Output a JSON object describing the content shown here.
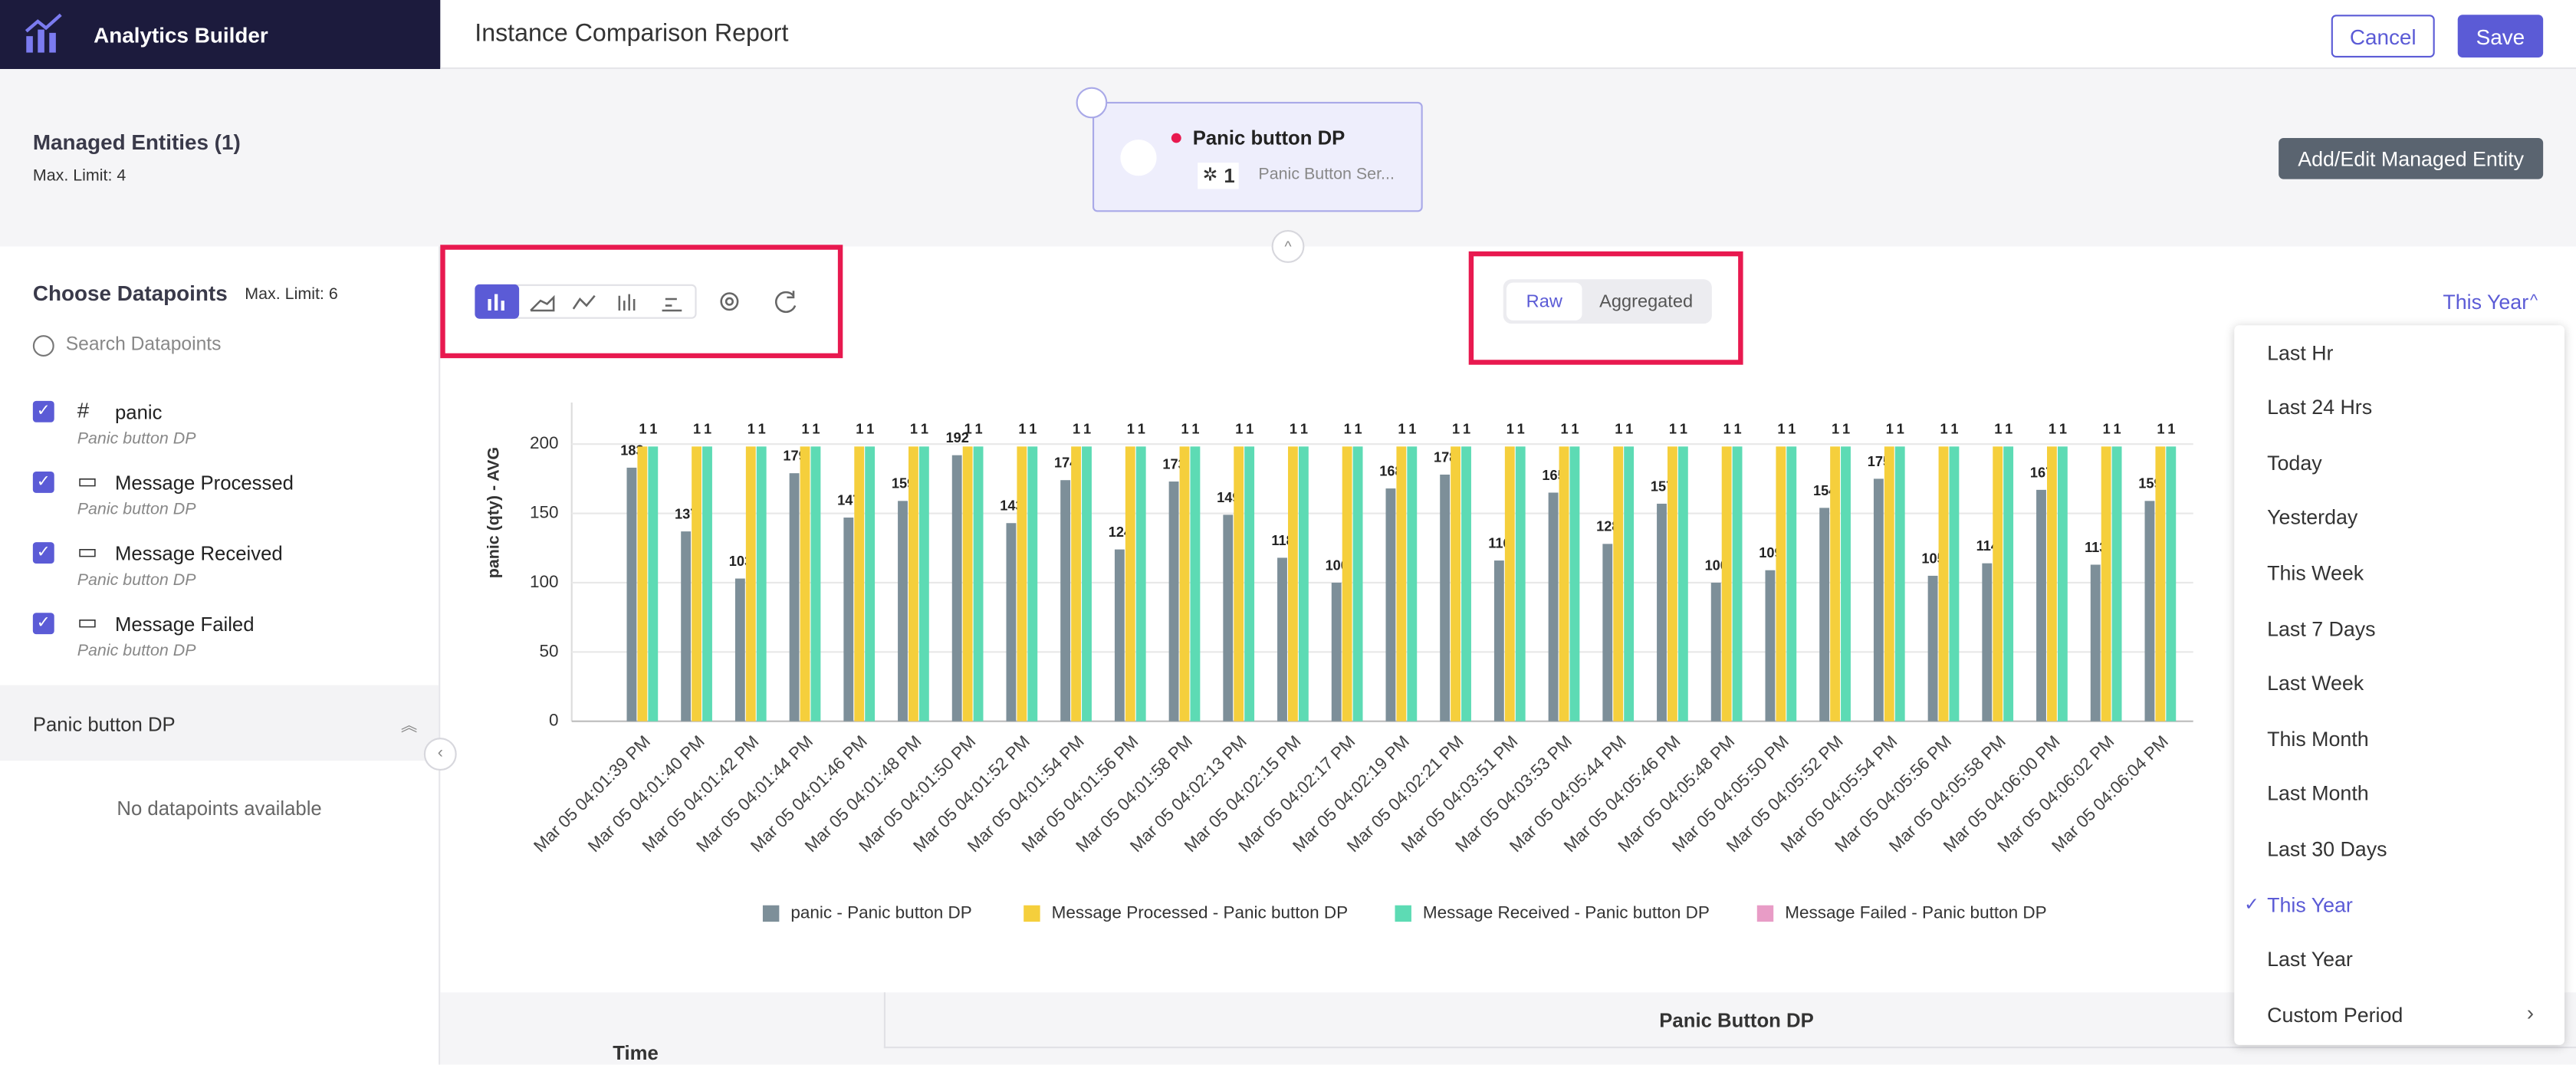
{
  "header": {
    "app": "Analytics Builder",
    "title": "Instance Comparison Report",
    "cancel": "Cancel",
    "save": "Save"
  },
  "entities": {
    "title": "Managed Entities (1)",
    "limit": "Max. Limit: 4",
    "card": {
      "name": "Panic button DP",
      "count": 1,
      "service": "Panic Button Ser..."
    },
    "button": "Add/Edit Managed Entity"
  },
  "datapoints": {
    "title": "Choose Datapoints",
    "limit": "Max. Limit: 6",
    "search": "Search Datapoints",
    "items": [
      {
        "name": "panic",
        "source": "Panic button DP"
      },
      {
        "name": "Message Processed",
        "source": "Panic button DP"
      },
      {
        "name": "Message Received",
        "source": "Panic button DP"
      },
      {
        "name": "Message Failed",
        "source": "Panic button DP"
      }
    ],
    "group": "Panic button DP",
    "empty": "No datapoints available"
  },
  "toggle": [
    "Raw",
    "Aggregated"
  ],
  "range": "This Year",
  "menu": [
    "Last Hr",
    "Last 24 Hrs",
    "Today",
    "Yesterday",
    "This Week",
    "Last 7 Days",
    "Last Week",
    "This Month",
    "Last Month",
    "Last 30 Days",
    "This Year",
    "Last Year",
    "Custom Period"
  ],
  "menu_selected": 10,
  "table": {
    "column": "Time",
    "group": "Panic Button DP"
  },
  "chart_data": {
    "type": "bar",
    "y_label": "panic (qty) - AVG",
    "categories": [
      "Mar 05 04:01:39 PM",
      "Mar 05 04:01:40 PM",
      "Mar 05 04:01:42 PM",
      "Mar 05 04:01:44 PM",
      "Mar 05 04:01:46 PM",
      "Mar 05 04:01:48 PM",
      "Mar 05 04:01:50 PM",
      "Mar 05 04:01:52 PM",
      "Mar 05 04:01:54 PM",
      "Mar 05 04:01:56 PM",
      "Mar 05 04:01:58 PM",
      "Mar 05 04:02:13 PM",
      "Mar 05 04:02:15 PM",
      "Mar 05 04:02:17 PM",
      "Mar 05 04:02:19 PM",
      "Mar 05 04:02:21 PM",
      "Mar 05 04:03:51 PM",
      "Mar 05 04:03:53 PM",
      "Mar 05 04:05:44 PM",
      "Mar 05 04:05:46 PM",
      "Mar 05 04:05:48 PM",
      "Mar 05 04:05:50 PM",
      "Mar 05 04:05:52 PM",
      "Mar 05 04:05:54 PM",
      "Mar 05 04:05:56 PM",
      "Mar 05 04:05:58 PM",
      "Mar 05 04:06:00 PM",
      "Mar 05 04:06:02 PM",
      "Mar 05 04:06:04 PM"
    ],
    "series": [
      {
        "name": "panic - Panic button DP",
        "color": "#7d8f99",
        "values": [
          183,
          137,
          103,
          179,
          147,
          159,
          192,
          143,
          174,
          124,
          173,
          149,
          118,
          100,
          168,
          178,
          116,
          165,
          128,
          157,
          100,
          109,
          154,
          175,
          105,
          114,
          167,
          113,
          159
        ]
      },
      {
        "name": "Message Processed - Panic button DP",
        "color": "#f5cf3c",
        "axis": "y2",
        "values": [
          1,
          1,
          1,
          1,
          1,
          1,
          1,
          1,
          1,
          1,
          1,
          1,
          1,
          1,
          1,
          1,
          1,
          1,
          1,
          1,
          1,
          1,
          1,
          1,
          1,
          1,
          1,
          1,
          1
        ]
      },
      {
        "name": "Message Received - Panic button DP",
        "color": "#5ddbb4",
        "axis": "y2",
        "values": [
          1,
          1,
          1,
          1,
          1,
          1,
          1,
          1,
          1,
          1,
          1,
          1,
          1,
          1,
          1,
          1,
          1,
          1,
          1,
          1,
          1,
          1,
          1,
          1,
          1,
          1,
          1,
          1,
          1
        ]
      },
      {
        "name": "Message Failed - Panic button DP",
        "color": "#e89cc6",
        "axis": "y2",
        "values": [
          null,
          null,
          null,
          null,
          null,
          null,
          null,
          null,
          null,
          null,
          null,
          null,
          null,
          null,
          null,
          null,
          null,
          null,
          null,
          null,
          null,
          null,
          null,
          null,
          null,
          null,
          null,
          null,
          null
        ]
      }
    ],
    "ylim": [
      0,
      230
    ],
    "yticks": [
      0,
      50,
      100,
      150,
      200
    ],
    "y2lim": [
      0,
      1.16
    ],
    "grid": true,
    "legend": "bottom"
  }
}
